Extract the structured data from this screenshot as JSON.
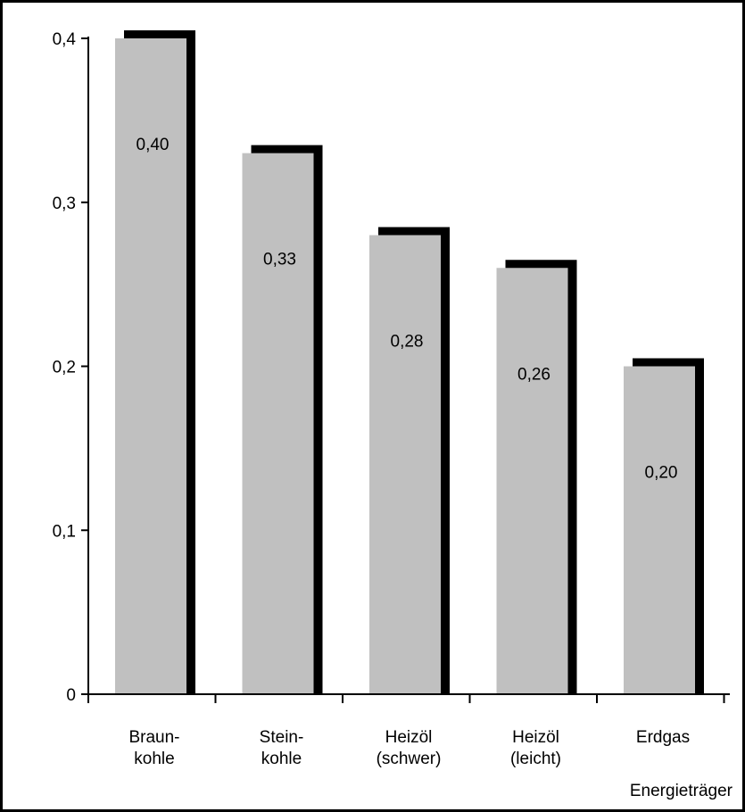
{
  "chart_data": {
    "type": "bar",
    "title": "",
    "xlabel": "Energieträger",
    "ylabel": "",
    "ylim": [
      0,
      0.4
    ],
    "grid": false,
    "legend": "none",
    "categories": [
      [
        "Braun-",
        "kohle"
      ],
      [
        "Stein-",
        "kohle"
      ],
      [
        "Heizöl",
        "(schwer)"
      ],
      [
        "Heizöl",
        "(leicht)"
      ],
      [
        "Erdgas"
      ]
    ],
    "values": [
      0.4,
      0.33,
      0.28,
      0.26,
      0.2
    ],
    "value_labels": [
      "0,40",
      "0,33",
      "0,28",
      "0,26",
      "0,20"
    ],
    "yticks": [
      {
        "value": 0,
        "label": "0"
      },
      {
        "value": 0.1,
        "label": "0,1"
      },
      {
        "value": 0.2,
        "label": "0,2"
      },
      {
        "value": 0.3,
        "label": "0,3"
      },
      {
        "value": 0.4,
        "label": "0,4"
      }
    ],
    "colors": {
      "bar_fill": "#c0c0c0",
      "bar_shadow": "#000000",
      "axis": "#000000"
    }
  }
}
